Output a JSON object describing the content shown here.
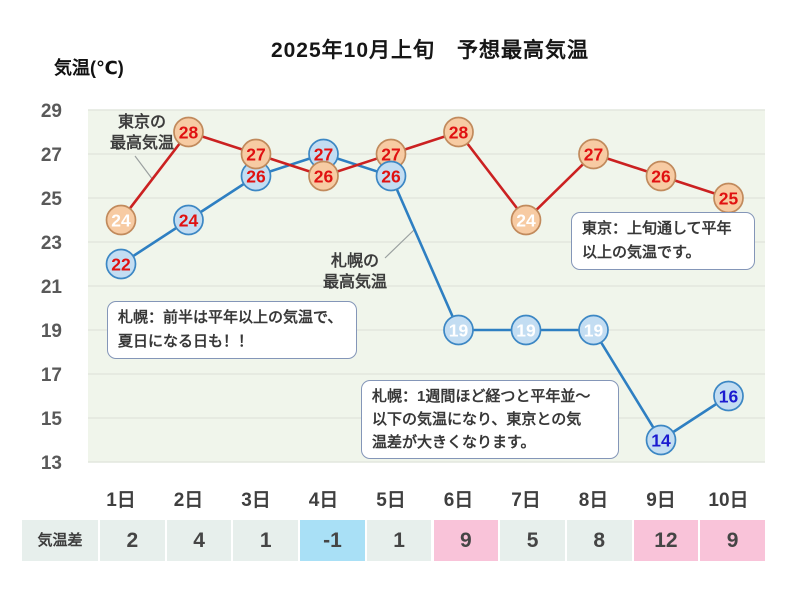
{
  "page": {
    "title": "2025年10月上旬　予想最高気温",
    "y_axis_label": "気温(℃)"
  },
  "chart_data": {
    "type": "line",
    "title": "2025年10月上旬　予想最高気温",
    "ylabel": "気温(℃)",
    "xlabel": "",
    "categories": [
      "1日",
      "2日",
      "3日",
      "4日",
      "5日",
      "6日",
      "7日",
      "8日",
      "9日",
      "10日"
    ],
    "ylim": [
      13,
      29
    ],
    "yticks": [
      29,
      27,
      25,
      23,
      21,
      19,
      17,
      15,
      13
    ],
    "grid": true,
    "legend_position": "in-plot-labels",
    "series": [
      {
        "name": "東京の最高気温",
        "name_lines": [
          "東京の",
          "最高気温"
        ],
        "values": [
          24,
          28,
          27,
          26,
          27,
          28,
          24,
          27,
          26,
          25
        ],
        "line_color": "#cb2121",
        "marker_fill": "#f7cba3",
        "marker_border": "#c18a5c",
        "value_label_colors": [
          "#ffffff",
          "#e01111",
          "#e01111",
          "#e01111",
          "#e01111",
          "#e01111",
          "#ffffff",
          "#e01111",
          "#e01111",
          "#e01111"
        ]
      },
      {
        "name": "札幌の最高気温",
        "name_lines": [
          "札幌の",
          "最高気温"
        ],
        "values": [
          22,
          24,
          26,
          27,
          26,
          19,
          19,
          19,
          14,
          16
        ],
        "line_color": "#2e7fc2",
        "marker_fill": "#c3ddf2",
        "marker_border": "#3c87c4",
        "value_label_colors": [
          "#e01111",
          "#e01111",
          "#e01111",
          "#e01111",
          "#e01111",
          "#ffffff",
          "#ffffff",
          "#ffffff",
          "#1b1bd0",
          "#1b1bd0"
        ]
      }
    ],
    "annotations": [
      {
        "id": "tokyo-note",
        "text": "東京：上旬通して平年以上の気温です。",
        "lines": [
          "東京：上旬通して平年",
          "以上の気温です。"
        ]
      },
      {
        "id": "sapporo-first-half-note",
        "text": "札幌：前半は平年以上の気温で、夏日になる日も！！",
        "lines": [
          "札幌：前半は平年以上の気温で、",
          "夏日になる日も！！"
        ]
      },
      {
        "id": "sapporo-second-half-note",
        "text": "札幌：1週間ほど経つと平年並〜以下の気温になり、東京との気温差が大きくなります。",
        "lines": [
          "札幌：1週間ほど経つと平年並〜",
          "以下の気温になり、東京との気",
          "温差が大きくなります。"
        ]
      }
    ]
  },
  "diff_table": {
    "row_label": "気温差",
    "values": [
      2,
      4,
      1,
      -1,
      1,
      9,
      5,
      8,
      12,
      9
    ],
    "cell_styles": [
      "normal",
      "normal",
      "normal",
      "negative",
      "normal",
      "large",
      "normal",
      "normal",
      "large",
      "large"
    ]
  },
  "colors": {
    "plot_bg": "#f0f5eb",
    "gridline": "#e2e7de",
    "y_tick_label": "#595959",
    "x_tick_label": "#3f3f3f",
    "connector": "#9aa0a0",
    "cell_default_bg": "#e7efec",
    "cell_negative_bg": "#a9e0f6",
    "cell_large_diff_bg": "#f9c3d9"
  }
}
